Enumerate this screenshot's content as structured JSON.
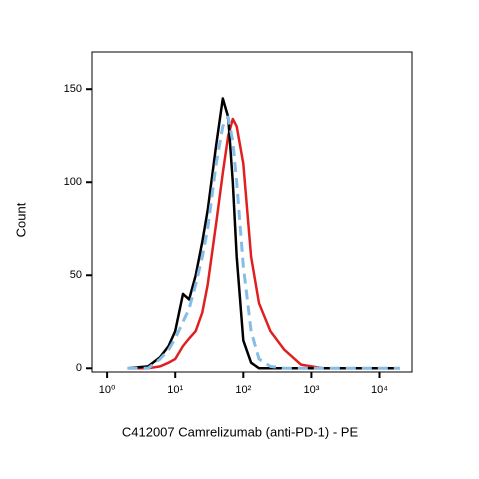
{
  "chart_data": {
    "type": "line",
    "xlabel": "C412007 Camrelizumab (anti-PD-1) - PE",
    "ylabel": "Count",
    "log_x": true,
    "x": [
      2,
      4,
      6,
      8,
      10,
      13,
      16,
      20,
      25,
      30,
      40,
      50,
      60,
      70,
      80,
      100,
      130,
      170,
      250,
      400,
      700,
      1500,
      20000
    ],
    "series": [
      {
        "color": "#e02020",
        "dash": false,
        "values": [
          0,
          0,
          1,
          3,
          5,
          12,
          16,
          20,
          30,
          45,
          78,
          105,
          125,
          134,
          130,
          110,
          60,
          35,
          20,
          10,
          2,
          0,
          0
        ]
      },
      {
        "color": "#000000",
        "dash": false,
        "values": [
          0,
          1,
          6,
          12,
          20,
          40,
          37,
          50,
          68,
          85,
          120,
          145,
          135,
          100,
          60,
          15,
          3,
          0,
          0,
          0,
          0,
          0,
          0
        ]
      },
      {
        "color": "#86bde6",
        "dash": true,
        "values": [
          0,
          0,
          5,
          10,
          16,
          25,
          32,
          45,
          60,
          75,
          110,
          130,
          135,
          122,
          100,
          55,
          20,
          5,
          1,
          0,
          0,
          0,
          0
        ]
      }
    ],
    "xlim": [
      0.6,
      30000
    ],
    "xticks": [
      {
        "value": 1,
        "label": "10⁰"
      },
      {
        "value": 10,
        "label": "10¹"
      },
      {
        "value": 100,
        "label": "10²"
      },
      {
        "value": 1000,
        "label": "10³"
      },
      {
        "value": 10000,
        "label": "10⁴"
      }
    ],
    "ylim": [
      -2,
      170
    ],
    "yticks": [
      0,
      50,
      100,
      150
    ]
  }
}
